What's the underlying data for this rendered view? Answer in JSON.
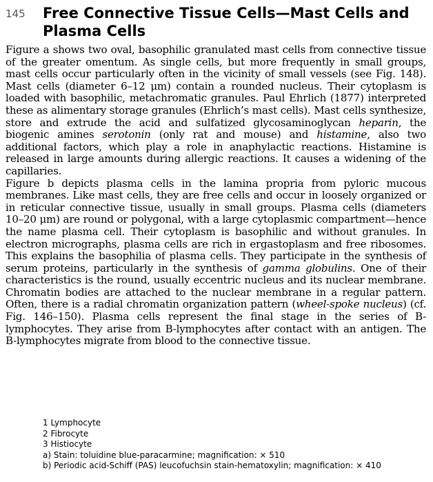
{
  "header": {
    "figure_number": "145",
    "title": "Free Connective Tissue Cells—Mast Cells and Plasma Cells"
  },
  "paragraph1": {
    "t1": "Figure a shows two oval, basophilic granulated mast cells from connective tissue of the greater omentum. As single cells, but more frequently in small groups, mast cells occur particularly often in the vicinity of small vessels (see Fig. 148). Mast cells (diameter 6–12 μm) contain a rounded nucleus. Their cytoplasm is loaded with basophilic, metachromatic granules. Paul Ehrlich (1877) interpreted these as alimentary storage granules (Ehrlich’s mast cells). Mast cells synthesize, store and extrude the acid and sulfatized glycosaminoglycan ",
    "e1": "heparin",
    "t2": ", the biogenic amines ",
    "e2": "serotonin",
    "t3": " (only rat and mouse) and ",
    "e3": "histamine",
    "t4": ", also two additional factors, which play a role in anaphylactic reactions. Histamine is released in large amounts during allergic reactions. It causes a widening of the capillaries."
  },
  "paragraph2": {
    "t1": "Figure b depicts plasma cells in the lamina propria from pyloric mucous membranes. Like mast cells, they are free cells and occur in loosely organized or in reticular connective tissue, usually in small groups. Plasma cells (diameters 10–20 μm) are round or polygonal, with a large cytoplasmic compartment—hence the name plasma cell. Their cytoplasm is basophilic and without granules. In electron micrographs, plasma cells are rich in ergastoplasm and free ribosomes. This explains the basophilia of plasma cells. They participate in the synthesis of serum proteins, particularly in the synthesis of ",
    "e1": "gamma globulins",
    "t2": ". One of their characteristics is the round, usually eccentric nucleus and its nuclear membrane. Chromatin bodies are attached to the nuclear membrane in a regular pattern. Often, there is a radial chromatin organization pattern (",
    "e2": "wheel-spoke nucleus",
    "t3": ") (cf. Fig. 146–150). Plasma cells represent the final stage in the series of B-lymphocytes. They arise from B-lymphocytes after contact with an antigen. The B-lymphocytes migrate from blood to the connective tissue."
  },
  "legend": [
    "1 Lymphocyte",
    "2 Fibrocyte",
    "3 Histiocyte",
    "a) Stain: toluidine blue-paracarmine; magnification: × 510",
    "b) Periodic acid-Schiff (PAS) leucofuchsin stain-hematoxylin; magnification: × 410"
  ]
}
